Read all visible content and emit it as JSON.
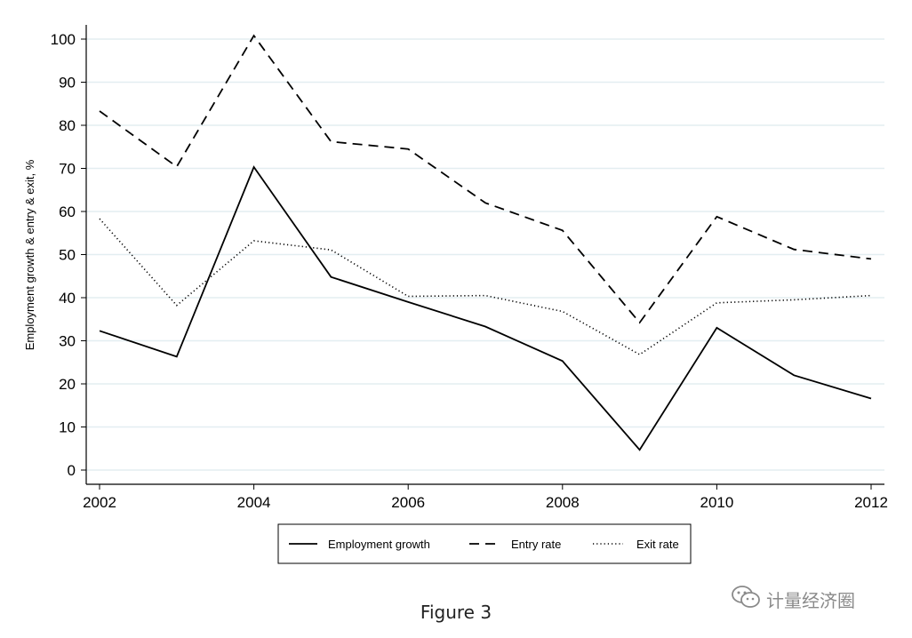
{
  "chart_data": {
    "type": "line",
    "x": [
      2002,
      2003,
      2004,
      2005,
      2006,
      2007,
      2008,
      2009,
      2010,
      2011,
      2012
    ],
    "series": [
      {
        "name": "Employment growth",
        "style": "solid",
        "values": [
          32.3,
          26.3,
          70.3,
          44.8,
          39.0,
          33.3,
          25.3,
          4.7,
          33.0,
          22.0,
          16.6
        ]
      },
      {
        "name": "Entry rate",
        "style": "dashed",
        "values": [
          83.3,
          70.4,
          100.8,
          76.2,
          74.5,
          62.0,
          55.6,
          34.2,
          58.8,
          51.2,
          49.0
        ]
      },
      {
        "name": "Exit rate",
        "style": "dotted",
        "values": [
          58.3,
          38.2,
          53.2,
          51.1,
          40.3,
          40.5,
          36.8,
          26.8,
          38.8,
          39.5,
          40.5
        ]
      }
    ],
    "xticks": [
      "2002",
      "2004",
      "2006",
      "2008",
      "2010",
      "2012"
    ],
    "yticks": [
      "0",
      "10",
      "20",
      "30",
      "40",
      "50",
      "60",
      "70",
      "80",
      "90",
      "100"
    ],
    "xlim": [
      2002,
      2012
    ],
    "ylim": [
      0,
      100
    ],
    "xlabel": "",
    "ylabel": "Employment growth & entry & exit, %",
    "grid": "horizontal",
    "legend_position": "bottom",
    "line_color": "#000000",
    "grid_color": "#e3eef1"
  },
  "caption": "Figure 3",
  "watermark": {
    "text": "计量经济圈",
    "icon": "wechat-icon"
  }
}
